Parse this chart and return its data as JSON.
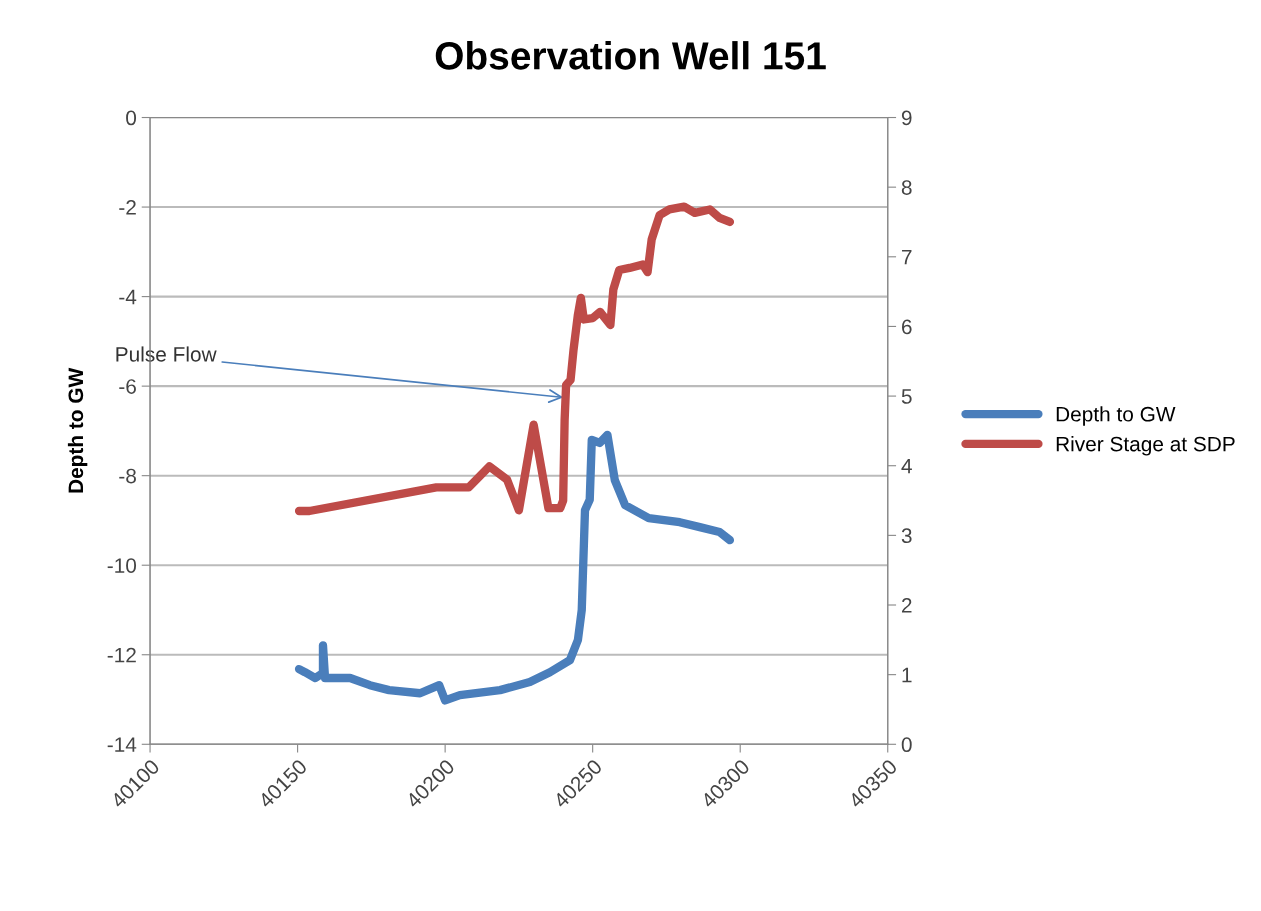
{
  "chart_data": {
    "type": "line",
    "title": "Observation Well 151",
    "ylabel": "Depth to GW",
    "xlim": [
      40100,
      40350
    ],
    "xticks": [
      40100,
      40150,
      40200,
      40250,
      40300,
      40350
    ],
    "ylim": [
      -14,
      0
    ],
    "yticks": [
      -14,
      -12,
      -10,
      -8,
      -6,
      -4,
      -2,
      0
    ],
    "y2lim": [
      0,
      9
    ],
    "y2ticks": [
      0,
      1,
      2,
      3,
      4,
      5,
      6,
      7,
      8,
      9
    ],
    "grid": "y",
    "legend": "right",
    "marker": "none",
    "line_style": "solid",
    "annotations": [
      {
        "text": "Pulse Flow",
        "x": 40241,
        "y": -6.26
      }
    ],
    "series": [
      {
        "name": "Depth to GW",
        "color": "#4a7ebb",
        "x": [
          40150.5,
          40152.5,
          40156,
          40158.6,
          40158.6,
          40159.3,
          40167.8,
          40174.5,
          40181,
          40191.5,
          40198,
          40200,
          40205,
          40218.6,
          40228.7,
          40235.5,
          40242.3,
          40245,
          40246.3,
          40247.4,
          40249,
          40249.7,
          40252.4,
          40255,
          40257.5,
          40261,
          40269,
          40279.5,
          40286.3,
          40293,
          40296.5
        ],
        "values": [
          -12.32,
          -12.39,
          -12.52,
          -12.41,
          -11.79,
          -12.52,
          -12.52,
          -12.68,
          -12.79,
          -12.86,
          -12.68,
          -13.02,
          -12.9,
          -12.79,
          -12.61,
          -12.39,
          -12.12,
          -11.67,
          -11.0,
          -8.77,
          -8.54,
          -7.2,
          -7.27,
          -7.09,
          -8.1,
          -8.66,
          -8.95,
          -9.04,
          -9.15,
          -9.26,
          -9.44
        ]
      },
      {
        "name": "River Stage at SDP",
        "color": "#be4b48",
        "axis": "y2",
        "x": [
          40150.5,
          40154,
          40197,
          40208,
          40215,
          40221,
          40225,
          40230,
          40235,
          40239,
          40240,
          40240.5,
          40241,
          40242.5,
          40243.5,
          40245,
          40246,
          40247,
          40250,
          40252.5,
          40256,
          40257,
          40259,
          40262.5,
          40267,
          40268.6,
          40270,
          40272.7,
          40276,
          40281,
          40284.6,
          40289.7,
          40293,
          40296.5
        ],
        "values": [
          3.35,
          3.35,
          3.69,
          3.69,
          3.99,
          3.8,
          3.36,
          4.59,
          3.39,
          3.39,
          3.5,
          4.66,
          5.16,
          5.23,
          5.66,
          6.17,
          6.41,
          6.1,
          6.12,
          6.21,
          6.02,
          6.53,
          6.81,
          6.84,
          6.89,
          6.78,
          7.25,
          7.6,
          7.68,
          7.72,
          7.63,
          7.68,
          7.56,
          7.5
        ]
      }
    ]
  }
}
